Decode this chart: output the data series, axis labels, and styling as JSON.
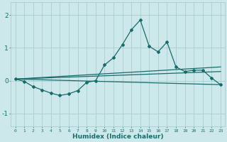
{
  "xlabel": "Humidex (Indice chaleur)",
  "background_color": "#cce8ea",
  "grid_color": "#aacdd0",
  "line_color": "#1a6b6b",
  "xlim": [
    -0.5,
    23.5
  ],
  "ylim": [
    -1.4,
    2.4
  ],
  "yticks": [
    -1,
    0,
    1,
    2
  ],
  "xticks": [
    0,
    1,
    2,
    3,
    4,
    5,
    6,
    7,
    8,
    9,
    10,
    11,
    12,
    13,
    14,
    15,
    16,
    17,
    18,
    19,
    20,
    21,
    22,
    23
  ],
  "line1_x": [
    0,
    1,
    2,
    3,
    4,
    5,
    6,
    7,
    8,
    9,
    10,
    11,
    12,
    13,
    14,
    15,
    16,
    17,
    18,
    19,
    20,
    21,
    22,
    23
  ],
  "line1_y": [
    0.05,
    -0.02,
    -0.18,
    -0.28,
    -0.38,
    -0.45,
    -0.4,
    -0.3,
    -0.05,
    0.0,
    0.48,
    0.7,
    1.1,
    1.55,
    1.85,
    1.05,
    0.88,
    1.18,
    0.42,
    0.28,
    0.32,
    0.32,
    0.08,
    -0.12
  ],
  "line2_x": [
    0,
    23
  ],
  "line2_y": [
    0.05,
    -0.12
  ],
  "line3_x": [
    0,
    23
  ],
  "line3_y": [
    0.05,
    0.42
  ],
  "line4_x": [
    0,
    23
  ],
  "line4_y": [
    0.05,
    0.28
  ]
}
